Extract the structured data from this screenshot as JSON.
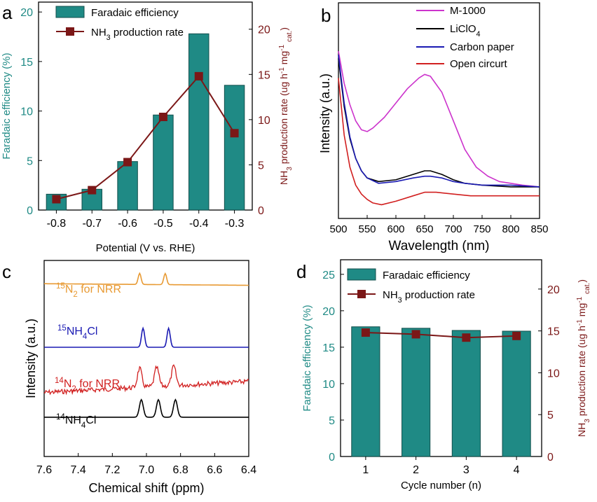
{
  "colors": {
    "teal": "#1f8a85",
    "maroon": "#7b1717",
    "magenta": "#cc33cc",
    "black": "#000000",
    "blue": "#1a1ab3",
    "red": "#d11f1f",
    "orange": "#e89a33",
    "gray": "#666666"
  },
  "chart_data": [
    {
      "panel": "a",
      "type": "bar",
      "categories": [
        "-0.8",
        "-0.7",
        "-0.6",
        "-0.5",
        "-0.4",
        "-0.3"
      ],
      "xlabel": "Potential (V vs. RHE)",
      "ylabel": "Faradaic efficiency (%)",
      "y2label": "NH3 production rate (ug h-1 mg-1 cat.)",
      "ylim": [
        0,
        21
      ],
      "y2lim": [
        0,
        23
      ],
      "yticks": [
        0,
        5,
        10,
        15,
        20
      ],
      "y2ticks": [
        0,
        5,
        10,
        15,
        20
      ],
      "legend_position": "top-left",
      "series": [
        {
          "name": "Faradaic efficiency",
          "kind": "bar",
          "axis": "left",
          "values": [
            1.6,
            2.1,
            4.9,
            9.6,
            17.8,
            12.6
          ]
        },
        {
          "name": "NH3 production rate",
          "kind": "line",
          "axis": "right",
          "values": [
            1.2,
            2.2,
            5.3,
            10.3,
            14.8,
            8.5
          ]
        }
      ]
    },
    {
      "panel": "b",
      "type": "line",
      "xlabel": "Wavelength (nm)",
      "ylabel": "Intensity (a.u.)",
      "xlim": [
        500,
        850
      ],
      "xticks": [
        500,
        550,
        600,
        650,
        700,
        750,
        800,
        850
      ],
      "ylim": [
        0,
        1
      ],
      "legend_position": "top-right",
      "series": [
        {
          "name": "M-1000",
          "x": [
            500,
            510,
            520,
            530,
            540,
            550,
            560,
            580,
            600,
            620,
            640,
            650,
            660,
            680,
            700,
            720,
            740,
            760,
            780,
            800,
            820,
            850
          ],
          "y": [
            0.87,
            0.69,
            0.57,
            0.48,
            0.43,
            0.42,
            0.44,
            0.5,
            0.58,
            0.66,
            0.72,
            0.74,
            0.73,
            0.64,
            0.48,
            0.32,
            0.22,
            0.17,
            0.14,
            0.13,
            0.12,
            0.11
          ]
        },
        {
          "name": "LiClO4",
          "x": [
            500,
            510,
            520,
            530,
            540,
            550,
            570,
            600,
            630,
            650,
            660,
            680,
            700,
            720,
            750,
            800,
            850
          ],
          "y": [
            0.83,
            0.56,
            0.38,
            0.27,
            0.2,
            0.16,
            0.14,
            0.15,
            0.18,
            0.2,
            0.2,
            0.18,
            0.15,
            0.13,
            0.12,
            0.11,
            0.11
          ]
        },
        {
          "name": "Carbon paper",
          "x": [
            500,
            510,
            520,
            530,
            540,
            550,
            570,
            600,
            630,
            650,
            660,
            680,
            700,
            720,
            750,
            800,
            850
          ],
          "y": [
            0.85,
            0.58,
            0.39,
            0.27,
            0.2,
            0.16,
            0.13,
            0.14,
            0.16,
            0.17,
            0.17,
            0.16,
            0.14,
            0.13,
            0.12,
            0.12,
            0.11
          ]
        },
        {
          "name": "Open circurt",
          "x": [
            500,
            510,
            520,
            530,
            540,
            550,
            560,
            575,
            600,
            630,
            650,
            670,
            700,
            730,
            760,
            800,
            850
          ],
          "y": [
            0.72,
            0.4,
            0.22,
            0.12,
            0.07,
            0.04,
            0.02,
            0.01,
            0.03,
            0.06,
            0.08,
            0.08,
            0.07,
            0.06,
            0.06,
            0.06,
            0.06
          ]
        }
      ]
    },
    {
      "panel": "c",
      "type": "line",
      "xlabel": "Chemical shift (ppm)",
      "ylabel": "Intensity (a.u.)",
      "xlim": [
        7.6,
        6.4
      ],
      "xticks": [
        7.6,
        7.4,
        7.2,
        7.0,
        6.8,
        6.6,
        6.4
      ],
      "x_reversed": true,
      "series": [
        {
          "name": "15N2 for NRR",
          "label_parts": [
            "15",
            "N",
            "2",
            " for NRR"
          ],
          "baseline_y": [
            0.045,
            0.0,
            0.055
          ],
          "peaks": [
            {
              "x": 7.04,
              "h": 0.07,
              "w": 0.012
            },
            {
              "x": 6.89,
              "h": 0.07,
              "w": 0.012
            }
          ]
        },
        {
          "name": "15NH4Cl",
          "label_parts": [
            "15",
            "NH",
            "4",
            "Cl"
          ],
          "baseline_y": [
            0.445,
            0.0,
            0.445
          ],
          "peaks": [
            {
              "x": 7.02,
              "h": 0.12,
              "w": 0.013
            },
            {
              "x": 6.87,
              "h": 0.12,
              "w": 0.013
            }
          ]
        },
        {
          "name": "14N2 for NRR",
          "label_parts": [
            "14",
            "N",
            "2",
            " for NRR"
          ],
          "baseline_y": [
            0.73,
            0.0,
            0.66
          ],
          "noisy": true,
          "peaks": [
            {
              "x": 7.04,
              "h": 0.12,
              "w": 0.018
            },
            {
              "x": 6.94,
              "h": 0.12,
              "w": 0.018
            },
            {
              "x": 6.84,
              "h": 0.12,
              "w": 0.018
            }
          ]
        },
        {
          "name": "14NH4Cl",
          "label_parts": [
            "14",
            "NH",
            "4",
            "Cl"
          ],
          "baseline_y": [
            0.885,
            0.0,
            0.885
          ],
          "peaks": [
            {
              "x": 7.03,
              "h": 0.11,
              "w": 0.016
            },
            {
              "x": 6.93,
              "h": 0.11,
              "w": 0.016
            },
            {
              "x": 6.83,
              "h": 0.11,
              "w": 0.016
            }
          ]
        }
      ]
    },
    {
      "panel": "d",
      "type": "bar",
      "categories": [
        "1",
        "2",
        "3",
        "4"
      ],
      "xlabel": "Cycle number (n)",
      "ylabel": "Faradaic efficiency (%)",
      "y2label": "NH3 production rate (ug h-1 mg-1 cat.)",
      "ylim": [
        0,
        27
      ],
      "y2lim": [
        0,
        23.5
      ],
      "yticks": [
        0,
        5,
        10,
        15,
        20,
        25
      ],
      "y2ticks": [
        0,
        5,
        10,
        15,
        20
      ],
      "legend_position": "top-left",
      "series": [
        {
          "name": "Faradaic efficiency",
          "kind": "bar",
          "axis": "left",
          "values": [
            17.8,
            17.6,
            17.3,
            17.2
          ]
        },
        {
          "name": "NH3 production rate",
          "kind": "line",
          "axis": "right",
          "values": [
            14.8,
            14.6,
            14.2,
            14.4
          ]
        }
      ]
    }
  ],
  "panel_labels": [
    "a",
    "b",
    "c",
    "d"
  ]
}
